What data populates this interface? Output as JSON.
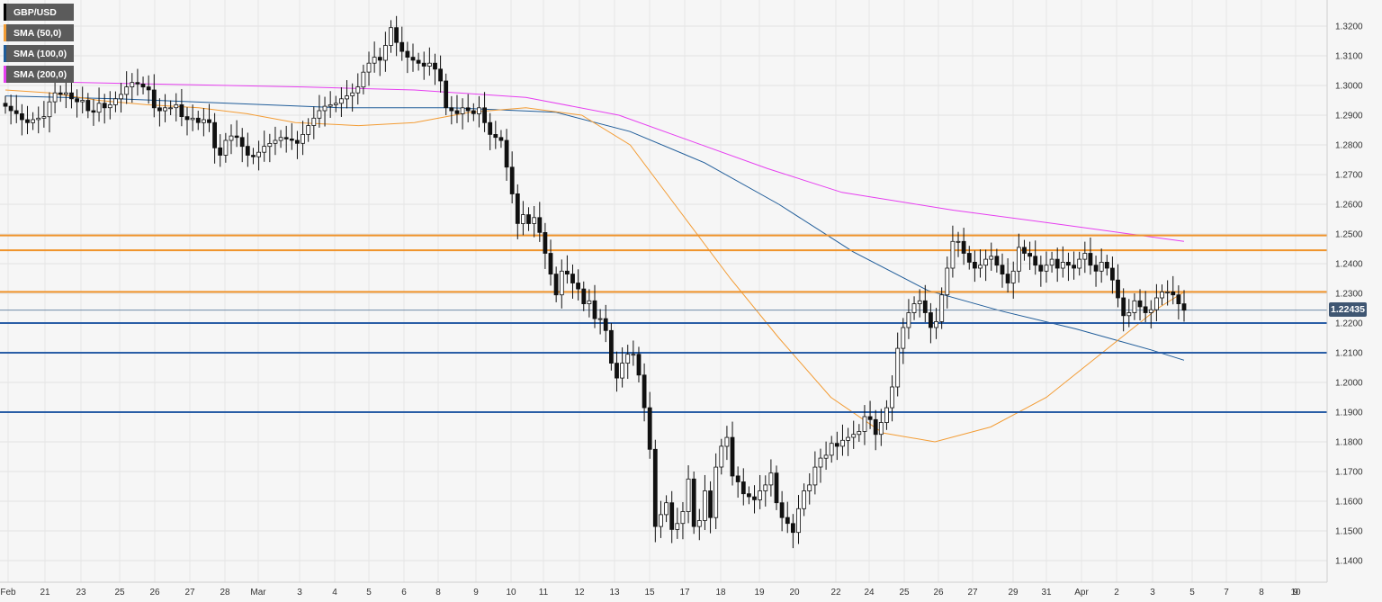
{
  "legend": [
    {
      "label": "GBP/USD",
      "color": "#000000"
    },
    {
      "label": "SMA (50,0)",
      "color": "#f39c34"
    },
    {
      "label": "SMA (100,0)",
      "color": "#1f5c99"
    },
    {
      "label": "SMA (200,0)",
      "color": "#e63ef0"
    }
  ],
  "last_price": "1.22435",
  "chart_data": {
    "type": "candlestick",
    "title": "",
    "xlabel": "",
    "ylabel": "",
    "ylim": [
      1.137,
      1.329
    ],
    "y_ticks": [
      "1.3200",
      "1.3100",
      "1.3000",
      "1.2900",
      "1.2800",
      "1.2700",
      "1.2600",
      "1.2500",
      "1.2400",
      "1.2300",
      "1.2200",
      "1.2100",
      "1.2000",
      "1.1900",
      "1.1800",
      "1.1700",
      "1.1600",
      "1.1500",
      "1.1400"
    ],
    "x_ticks": [
      "Feb",
      "21",
      "23",
      "25",
      "26",
      "27",
      "28",
      "Mar",
      "3",
      "4",
      "5",
      "6",
      "8",
      "9",
      "10",
      "11",
      "12",
      "13",
      "15",
      "17",
      "18",
      "19",
      "20",
      "22",
      "24",
      "25",
      "26",
      "27",
      "29",
      "31",
      "Apr",
      "2",
      "3",
      "5",
      "7",
      "8",
      "9",
      "10"
    ],
    "grid": true,
    "legend_position": "top-left",
    "horizontal_levels": [
      {
        "value": 1.2495,
        "color": "#f0932b"
      },
      {
        "value": 1.2445,
        "color": "#f0932b"
      },
      {
        "value": 1.2305,
        "color": "#f0932b"
      },
      {
        "value": 1.22,
        "color": "#2a5ea6"
      },
      {
        "value": 1.21,
        "color": "#2a5ea6"
      },
      {
        "value": 1.19,
        "color": "#2a5ea6"
      }
    ],
    "current_price_line": 1.22435,
    "closes": [
      1.293,
      1.2915,
      1.2905,
      1.2885,
      1.2875,
      1.2885,
      1.289,
      1.2895,
      1.2945,
      1.2975,
      1.297,
      1.2975,
      1.2955,
      1.2945,
      1.295,
      1.2915,
      1.291,
      1.294,
      1.2925,
      1.2935,
      1.2955,
      1.297,
      1.2995,
      1.301,
      1.3005,
      1.2995,
      1.2985,
      1.2925,
      1.2915,
      1.2925,
      1.2925,
      1.2935,
      1.2895,
      1.2885,
      1.289,
      1.2875,
      1.2885,
      1.2875,
      1.279,
      1.2765,
      1.2815,
      1.283,
      1.2825,
      1.2795,
      1.2765,
      1.276,
      1.2775,
      1.2795,
      1.2805,
      1.2815,
      1.2825,
      1.282,
      1.2815,
      1.2805,
      1.2835,
      1.2865,
      1.289,
      1.2915,
      1.293,
      1.2935,
      1.294,
      1.2955,
      1.2965,
      1.2975,
      1.2995,
      1.3045,
      1.3075,
      1.3095,
      1.3085,
      1.3135,
      1.3195,
      1.3145,
      1.3115,
      1.3095,
      1.3085,
      1.3075,
      1.3065,
      1.3075,
      1.3055,
      1.3015,
      1.2925,
      1.2915,
      1.2905,
      1.2925,
      1.2915,
      1.2905,
      1.2925,
      1.2875,
      1.2835,
      1.2825,
      1.2815,
      1.2725,
      1.2635,
      1.2535,
      1.2565,
      1.2535,
      1.2555,
      1.2505,
      1.2435,
      1.2365,
      1.2295,
      1.2375,
      1.2365,
      1.2335,
      1.2315,
      1.2265,
      1.2275,
      1.2215,
      1.2215,
      1.2175,
      1.2065,
      1.2015,
      1.2065,
      1.2095,
      1.2095,
      1.2025,
      1.1915,
      1.1775,
      1.1515,
      1.1555,
      1.1595,
      1.1505,
      1.1525,
      1.1565,
      1.1675,
      1.1515,
      1.1535,
      1.1635,
      1.1545,
      1.1715,
      1.1785,
      1.1815,
      1.1685,
      1.1665,
      1.1625,
      1.1615,
      1.1605,
      1.1635,
      1.1655,
      1.1695,
      1.1595,
      1.1545,
      1.1525,
      1.1495,
      1.1575,
      1.1635,
      1.1655,
      1.1715,
      1.1745,
      1.1755,
      1.1795,
      1.1785,
      1.1805,
      1.1815,
      1.1825,
      1.1835,
      1.1885,
      1.1875,
      1.1825,
      1.1865,
      1.1915,
      1.1985,
      1.2115,
      1.2185,
      1.2235,
      1.2265,
      1.2275,
      1.2235,
      1.2185,
      1.2205,
      1.2295,
      1.2385,
      1.2475,
      1.2475,
      1.2435,
      1.2405,
      1.2385,
      1.2395,
      1.2415,
      1.2425,
      1.2395,
      1.2365,
      1.2335,
      1.2375,
      1.2455,
      1.2435,
      1.2425,
      1.2395,
      1.2375,
      1.2395,
      1.2415,
      1.2385,
      1.2405,
      1.2395,
      1.2385,
      1.2415,
      1.2435,
      1.2395,
      1.2375,
      1.2405,
      1.2385,
      1.2345,
      1.2285,
      1.2225,
      1.2235,
      1.2275,
      1.2255,
      1.2235,
      1.2245,
      1.2285,
      1.2305,
      1.2305,
      1.2295,
      1.2265,
      1.22435
    ],
    "sma50": [
      [
        1.2985,
        0
      ],
      [
        1.2975,
        12
      ],
      [
        1.295,
        25
      ],
      [
        1.2935,
        38
      ],
      [
        1.2925,
        52
      ],
      [
        1.2905,
        65
      ],
      [
        1.2875,
        78
      ],
      [
        1.2865,
        95
      ],
      [
        1.2875,
        110
      ],
      [
        1.291,
        125
      ],
      [
        1.2925,
        140
      ],
      [
        1.29,
        155
      ],
      [
        1.28,
        168
      ],
      [
        1.26,
        180
      ],
      [
        1.235,
        195
      ],
      [
        1.215,
        208
      ],
      [
        1.195,
        222
      ],
      [
        1.183,
        236
      ],
      [
        1.18,
        250
      ],
      [
        1.185,
        265
      ],
      [
        1.195,
        280
      ],
      [
        1.21,
        295
      ],
      [
        1.225,
        310
      ],
      [
        1.2305,
        317
      ]
    ],
    "sma100": [
      [
        1.2965,
        0
      ],
      [
        1.2955,
        30
      ],
      [
        1.294,
        60
      ],
      [
        1.2925,
        90
      ],
      [
        1.2925,
        120
      ],
      [
        1.291,
        148
      ],
      [
        1.2845,
        168
      ],
      [
        1.274,
        188
      ],
      [
        1.26,
        208
      ],
      [
        1.244,
        228
      ],
      [
        1.231,
        248
      ],
      [
        1.224,
        268
      ],
      [
        1.218,
        288
      ],
      [
        1.211,
        308
      ],
      [
        1.2075,
        317
      ]
    ],
    "sma200": [
      [
        1.3015,
        0
      ],
      [
        1.3005,
        40
      ],
      [
        1.2995,
        80
      ],
      [
        1.2985,
        110
      ],
      [
        1.296,
        140
      ],
      [
        1.29,
        165
      ],
      [
        1.281,
        185
      ],
      [
        1.272,
        205
      ],
      [
        1.264,
        225
      ],
      [
        1.258,
        255
      ],
      [
        1.253,
        285
      ],
      [
        1.2475,
        317
      ]
    ]
  }
}
